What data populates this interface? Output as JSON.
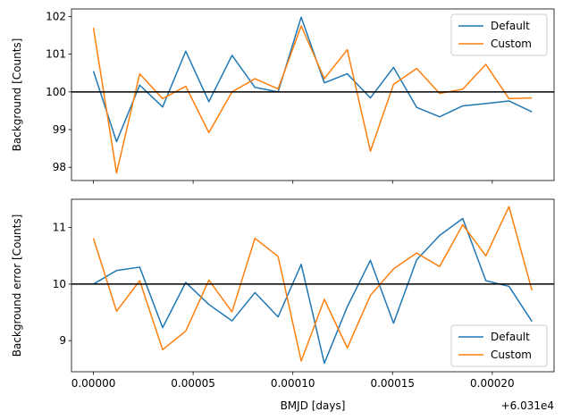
{
  "chart_data": [
    {
      "type": "line",
      "ylabel": "Background [Counts]",
      "xlim": [
        -1.1e-05,
        0.000231
      ],
      "ylim": [
        97.65,
        102.2
      ],
      "yticks": [
        98,
        99,
        100,
        101,
        102
      ],
      "xticks": [
        0.0,
        5e-05,
        0.0001,
        0.00015,
        0.0002
      ],
      "xtick_labels": [
        "",
        "",
        "",
        "",
        ""
      ],
      "hline": 100,
      "legend": "top-right",
      "x": [
        0.0,
        1.16e-05,
        2.32e-05,
        3.47e-05,
        4.63e-05,
        5.79e-05,
        6.95e-05,
        8.1e-05,
        9.26e-05,
        0.0001042,
        0.0001158,
        0.0001273,
        0.0001389,
        0.0001505,
        0.0001621,
        0.0001736,
        0.0001852,
        0.0001968,
        0.0002084,
        0.0002199
      ],
      "series": [
        {
          "name": "Default",
          "color": "#1f77b4",
          "values": [
            100.55,
            98.68,
            100.18,
            99.6,
            101.08,
            99.74,
            100.97,
            100.12,
            100.0,
            101.98,
            100.24,
            100.48,
            99.84,
            100.65,
            99.59,
            99.34,
            99.63,
            99.69,
            99.76,
            99.47
          ]
        },
        {
          "name": "Custom",
          "color": "#ff7f0e",
          "values": [
            101.7,
            97.85,
            100.48,
            99.82,
            100.15,
            98.92,
            100.0,
            100.35,
            100.08,
            101.75,
            100.35,
            101.12,
            98.43,
            100.2,
            100.62,
            99.96,
            100.07,
            100.73,
            99.82,
            99.84
          ]
        }
      ]
    },
    {
      "type": "line",
      "ylabel": "Background error [Counts]",
      "xlabel": "BMJD [days]",
      "offset_label": "+6.031e4",
      "xlim": [
        -1.1e-05,
        0.000231
      ],
      "ylim": [
        8.45,
        11.5
      ],
      "yticks": [
        9,
        10,
        11
      ],
      "xticks": [
        0.0,
        5e-05,
        0.0001,
        0.00015,
        0.0002
      ],
      "xtick_labels": [
        "0.00000",
        "0.00005",
        "0.00010",
        "0.00015",
        "0.00020"
      ],
      "hline": 10,
      "legend": "bottom-right",
      "x": [
        0.0,
        1.16e-05,
        2.32e-05,
        3.47e-05,
        4.63e-05,
        5.79e-05,
        6.95e-05,
        8.1e-05,
        9.26e-05,
        0.0001042,
        0.0001158,
        0.0001273,
        0.0001389,
        0.0001505,
        0.0001621,
        0.0001736,
        0.0001852,
        0.0001968,
        0.0002084,
        0.0002199
      ],
      "series": [
        {
          "name": "Default",
          "color": "#1f77b4",
          "values": [
            10.0,
            10.24,
            10.3,
            9.23,
            10.03,
            9.64,
            9.35,
            9.85,
            9.42,
            10.35,
            8.6,
            9.6,
            10.42,
            9.31,
            10.43,
            10.86,
            11.16,
            10.06,
            9.96,
            9.34
          ]
        },
        {
          "name": "Custom",
          "color": "#ff7f0e",
          "values": [
            10.81,
            9.52,
            10.06,
            8.84,
            9.17,
            10.07,
            9.51,
            10.81,
            10.49,
            8.64,
            9.73,
            8.87,
            9.8,
            10.27,
            10.55,
            10.31,
            11.05,
            10.5,
            11.37,
            9.89
          ]
        }
      ]
    }
  ]
}
